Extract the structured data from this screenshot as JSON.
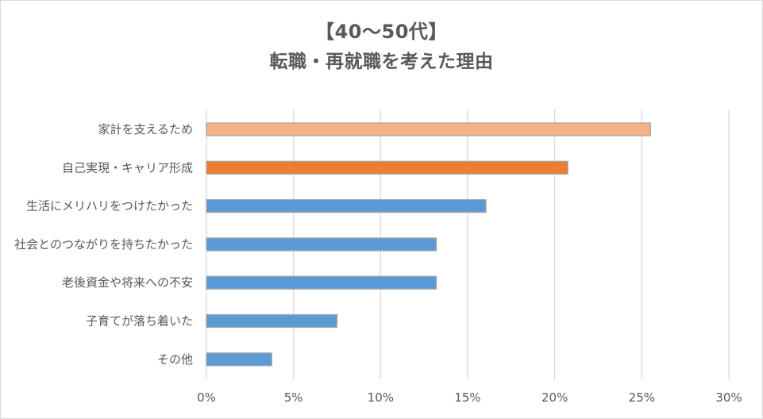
{
  "chart_data": {
    "type": "bar",
    "orientation": "horizontal",
    "title": "【40～50代】",
    "subtitle": "転職・再就職を考えた理由",
    "categories": [
      "家計を支えるため",
      "自己実現・キャリア形成",
      "生活にメリハリをつけたかった",
      "社会とのつながりを持ちたかった",
      "老後資金や将来への不安",
      "子育てが落ち着いた",
      "その他"
    ],
    "values": [
      25.5,
      20.75,
      16.05,
      13.2,
      13.2,
      7.5,
      3.75
    ],
    "bar_colors": [
      "#f4b183",
      "#ed7d31",
      "#5b9bd5",
      "#5b9bd5",
      "#5b9bd5",
      "#5b9bd5",
      "#5b9bd5"
    ],
    "xlim": [
      0,
      30
    ],
    "xticks": [
      0,
      5,
      10,
      15,
      20,
      25,
      30
    ],
    "tick_suffix": "%",
    "xlabel": "",
    "ylabel": "",
    "grid": "vertical",
    "legend": "none",
    "colors": {
      "text": "#595959",
      "grid": "#d9d9d9",
      "bar_border": "#a6a6a6",
      "frame": "#d9d9d9"
    }
  }
}
